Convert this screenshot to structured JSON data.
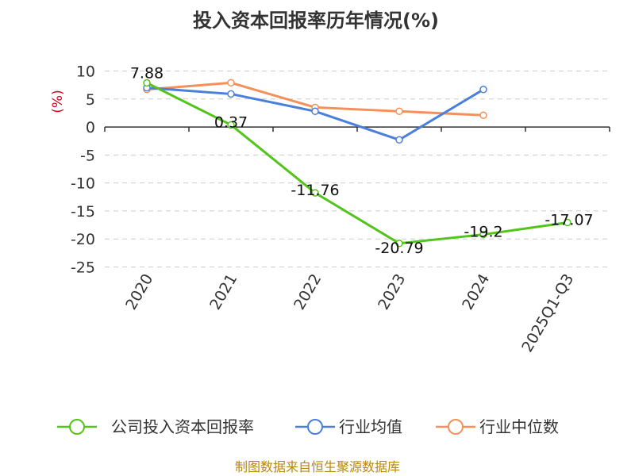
{
  "chart_data": {
    "type": "line",
    "title": "投入资本回报率历年情况(%)",
    "ylabel": "(%)",
    "categories": [
      "2020",
      "2021",
      "2022",
      "2023",
      "2024",
      "2025Q1-Q3"
    ],
    "ylim": [
      -25,
      10
    ],
    "yticks": [
      10,
      5,
      0,
      -5,
      -10,
      -15,
      -20,
      -25
    ],
    "grid": true,
    "legend_position": "bottom",
    "series": [
      {
        "name": "公司投入资本回报率",
        "color": "#52c41a",
        "values": [
          7.88,
          0.37,
          -11.76,
          -20.79,
          -19.2,
          -17.07
        ],
        "labels": [
          "7.88",
          "0.37",
          "-11.76",
          "-20.79",
          "-19.2",
          "-17.07"
        ]
      },
      {
        "name": "行业均值",
        "color": "#4a7fdc",
        "values": [
          7.0,
          5.9,
          2.8,
          -2.3,
          6.7,
          null
        ]
      },
      {
        "name": "行业中位数",
        "color": "#f5905a",
        "values": [
          6.7,
          7.9,
          3.5,
          2.8,
          2.1,
          null
        ]
      }
    ]
  },
  "source": "制图数据来自恒生聚源数据库",
  "colors": {
    "axis_unit": "#d9001b",
    "source_text": "#b8860b"
  }
}
